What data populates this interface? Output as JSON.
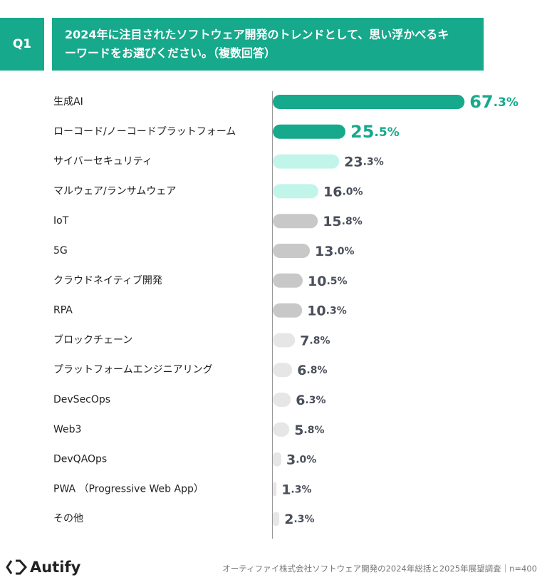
{
  "header": {
    "question": "Q1"
  },
  "chart_data": {
    "type": "hbar",
    "title": "2024年に注目されたソフトウェア開発のトレンドとして、思い浮かべるキーワードをお選びください。（複数回答）",
    "categories": [
      "生成AI",
      "ローコード/ノーコードプラットフォーム",
      "サイバーセキュリティ",
      "マルウェア/ランサムウェア",
      "IoT",
      "5G",
      "クラウドネイティブ開発",
      "RPA",
      "ブロックチェーン",
      "プラットフォームエンジニアリング",
      "DevSecOps",
      "Web3",
      "DevQAOps",
      "PWA （Progressive Web App）",
      "その他"
    ],
    "values": [
      67.3,
      25.5,
      23.3,
      16.0,
      15.8,
      13.0,
      10.5,
      10.3,
      7.8,
      6.8,
      6.3,
      5.8,
      3.0,
      1.3,
      2.3
    ],
    "value_labels": [
      "67.3%",
      "25.5%",
      "23.3%",
      "16.0%",
      "15.8%",
      "13.0%",
      "10.5%",
      "10.3%",
      "7.8%",
      "6.8%",
      "6.3%",
      "5.8%",
      "3.0%",
      "1.3%",
      "2.3%"
    ],
    "colors": [
      "#17a98b",
      "#17a98b",
      "#c2f5ea",
      "#c2f5ea",
      "#c8c8c8",
      "#c8c8c8",
      "#c8c8c8",
      "#c8c8c8",
      "#e6e6e6",
      "#e6e6e6",
      "#e6e6e6",
      "#e6e6e6",
      "#e6e6e6",
      "#e6e6e6",
      "#e6e6e6"
    ],
    "label_colors": [
      "#17a98b",
      "#17a98b",
      "#4a4f5a",
      "#4a4f5a",
      "#4a4f5a",
      "#4a4f5a",
      "#4a4f5a",
      "#4a4f5a",
      "#4a4f5a",
      "#4a4f5a",
      "#4a4f5a",
      "#4a4f5a",
      "#4a4f5a",
      "#4a4f5a",
      "#4a4f5a"
    ]
  },
  "footer": {
    "logo": "Autify",
    "source": "オーティファイ株式会社ソフトウェア開発の2024年総括と2025年展望調査｜n=400"
  }
}
